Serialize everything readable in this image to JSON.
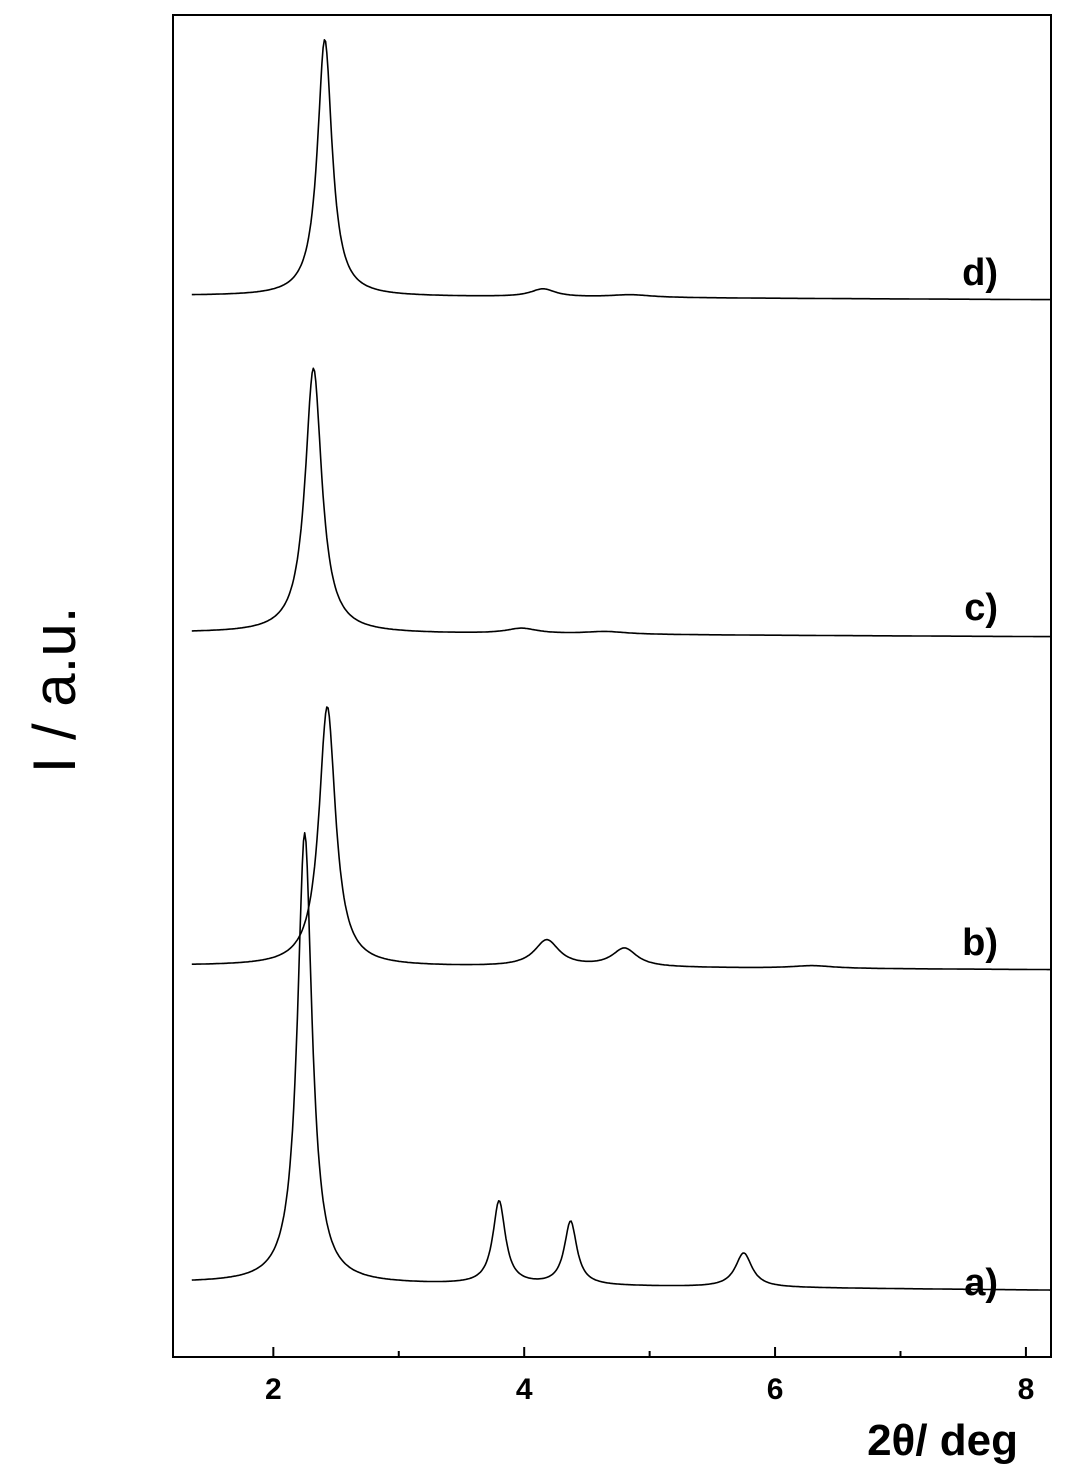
{
  "chart_data": {
    "type": "line",
    "xlabel": "2θ/ deg",
    "ylabel": "I / a.u.",
    "xlim": [
      1.2,
      8.2
    ],
    "xticks_major": [
      2,
      4,
      6,
      8
    ],
    "xticks_minor": [
      3,
      5,
      7
    ],
    "grid": false,
    "legend": "none",
    "series": [
      {
        "name": "a)",
        "baseline": 0.02,
        "peaks": [
          {
            "x": 2.25,
            "height": 0.92,
            "width": 0.07
          },
          {
            "x": 3.8,
            "height": 0.17,
            "width": 0.06
          },
          {
            "x": 4.37,
            "height": 0.13,
            "width": 0.06
          },
          {
            "x": 5.75,
            "height": 0.07,
            "width": 0.08
          }
        ]
      },
      {
        "name": "b)",
        "baseline": 0.02,
        "peaks": [
          {
            "x": 2.43,
            "height": 0.98,
            "width": 0.08
          },
          {
            "x": 4.18,
            "height": 0.1,
            "width": 0.12
          },
          {
            "x": 4.8,
            "height": 0.07,
            "width": 0.12
          },
          {
            "x": 6.3,
            "height": 0.01,
            "width": 0.2
          }
        ]
      },
      {
        "name": "c)",
        "baseline": 0.02,
        "peaks": [
          {
            "x": 2.32,
            "height": 1.0,
            "width": 0.08
          },
          {
            "x": 3.98,
            "height": 0.02,
            "width": 0.15
          },
          {
            "x": 4.65,
            "height": 0.01,
            "width": 0.2
          }
        ]
      },
      {
        "name": "d)",
        "baseline": 0.02,
        "peaks": [
          {
            "x": 2.41,
            "height": 0.97,
            "width": 0.07
          },
          {
            "x": 4.15,
            "height": 0.03,
            "width": 0.12
          },
          {
            "x": 4.85,
            "height": 0.01,
            "width": 0.2
          }
        ]
      }
    ]
  }
}
